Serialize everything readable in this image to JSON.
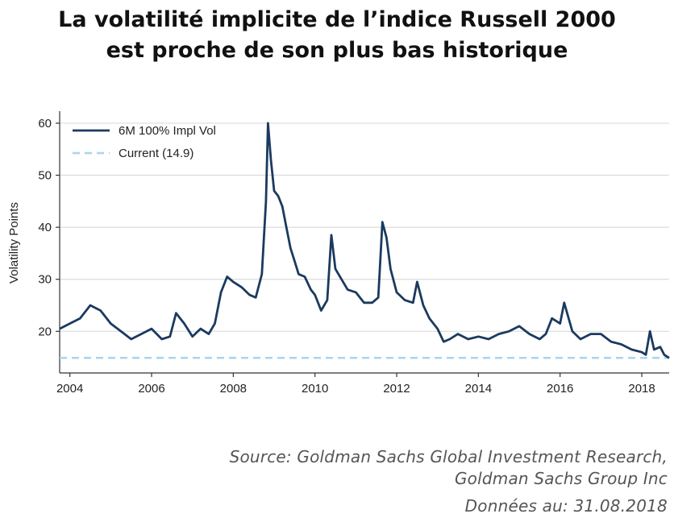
{
  "title": {
    "line1": "La volatilité implicite de l’indice Russell 2000",
    "line2": "est proche de son plus bas historique"
  },
  "source": {
    "line1": "Source: Goldman Sachs Global Investment Research,",
    "line2": "Goldman Sachs Group Inc",
    "date": "Données au: 31.08.2018"
  },
  "chart_data": {
    "type": "line",
    "ylabel": "Volatility Points",
    "xlabel": "",
    "xlim": [
      2003.75,
      2018.67
    ],
    "ylim": [
      12,
      62
    ],
    "x_ticks": [
      2004,
      2006,
      2008,
      2010,
      2012,
      2014,
      2016,
      2018
    ],
    "x_tick_labels": [
      "2004",
      "2006",
      "2008",
      "2010",
      "2012",
      "2014",
      "2016",
      "2018"
    ],
    "y_ticks": [
      20,
      30,
      40,
      50,
      60
    ],
    "y_tick_labels": [
      "20",
      "30",
      "40",
      "50",
      "60"
    ],
    "grid": "horizontal",
    "legend_position": "top-left",
    "series": [
      {
        "name": "6M 100% Impl Vol",
        "color": "#1b3a5f",
        "style": "solid",
        "x": [
          2003.75,
          2004.0,
          2004.25,
          2004.5,
          2004.75,
          2005.0,
          2005.25,
          2005.5,
          2005.75,
          2006.0,
          2006.25,
          2006.45,
          2006.6,
          2006.8,
          2007.0,
          2007.2,
          2007.4,
          2007.55,
          2007.7,
          2007.85,
          2008.0,
          2008.2,
          2008.4,
          2008.55,
          2008.7,
          2008.8,
          2008.85,
          2008.92,
          2009.0,
          2009.1,
          2009.2,
          2009.3,
          2009.4,
          2009.5,
          2009.6,
          2009.75,
          2009.9,
          2010.0,
          2010.15,
          2010.3,
          2010.4,
          2010.5,
          2010.65,
          2010.8,
          2011.0,
          2011.2,
          2011.4,
          2011.55,
          2011.65,
          2011.75,
          2011.85,
          2012.0,
          2012.2,
          2012.4,
          2012.5,
          2012.65,
          2012.8,
          2013.0,
          2013.15,
          2013.3,
          2013.5,
          2013.75,
          2014.0,
          2014.25,
          2014.5,
          2014.75,
          2015.0,
          2015.25,
          2015.5,
          2015.65,
          2015.8,
          2016.0,
          2016.1,
          2016.3,
          2016.5,
          2016.75,
          2017.0,
          2017.25,
          2017.5,
          2017.75,
          2018.0,
          2018.1,
          2018.2,
          2018.3,
          2018.45,
          2018.55,
          2018.67
        ],
        "y": [
          20.5,
          21.5,
          22.5,
          25.0,
          24.0,
          21.5,
          20.0,
          18.5,
          19.5,
          20.5,
          18.5,
          19.0,
          23.5,
          21.5,
          19.0,
          20.5,
          19.5,
          21.5,
          27.5,
          30.5,
          29.5,
          28.5,
          27.0,
          26.5,
          31.0,
          45.0,
          60.0,
          53.0,
          47.0,
          46.0,
          44.0,
          40.0,
          36.0,
          33.5,
          31.0,
          30.5,
          28.0,
          27.0,
          24.0,
          26.0,
          38.5,
          32.0,
          30.0,
          28.0,
          27.5,
          25.5,
          25.5,
          26.5,
          41.0,
          38.0,
          32.0,
          27.5,
          26.0,
          25.5,
          29.5,
          25.0,
          22.5,
          20.5,
          18.0,
          18.5,
          19.5,
          18.5,
          19.0,
          18.5,
          19.5,
          20.0,
          21.0,
          19.5,
          18.5,
          19.5,
          22.5,
          21.5,
          25.5,
          20.0,
          18.5,
          19.5,
          19.5,
          18.0,
          17.5,
          16.5,
          16.0,
          15.5,
          20.0,
          16.5,
          17.0,
          15.5,
          14.9
        ]
      },
      {
        "name": "Current (14.9)",
        "color": "#a8d4f0",
        "style": "dashed",
        "x": [
          2003.75,
          2018.67
        ],
        "y": [
          14.9,
          14.9
        ]
      }
    ]
  }
}
